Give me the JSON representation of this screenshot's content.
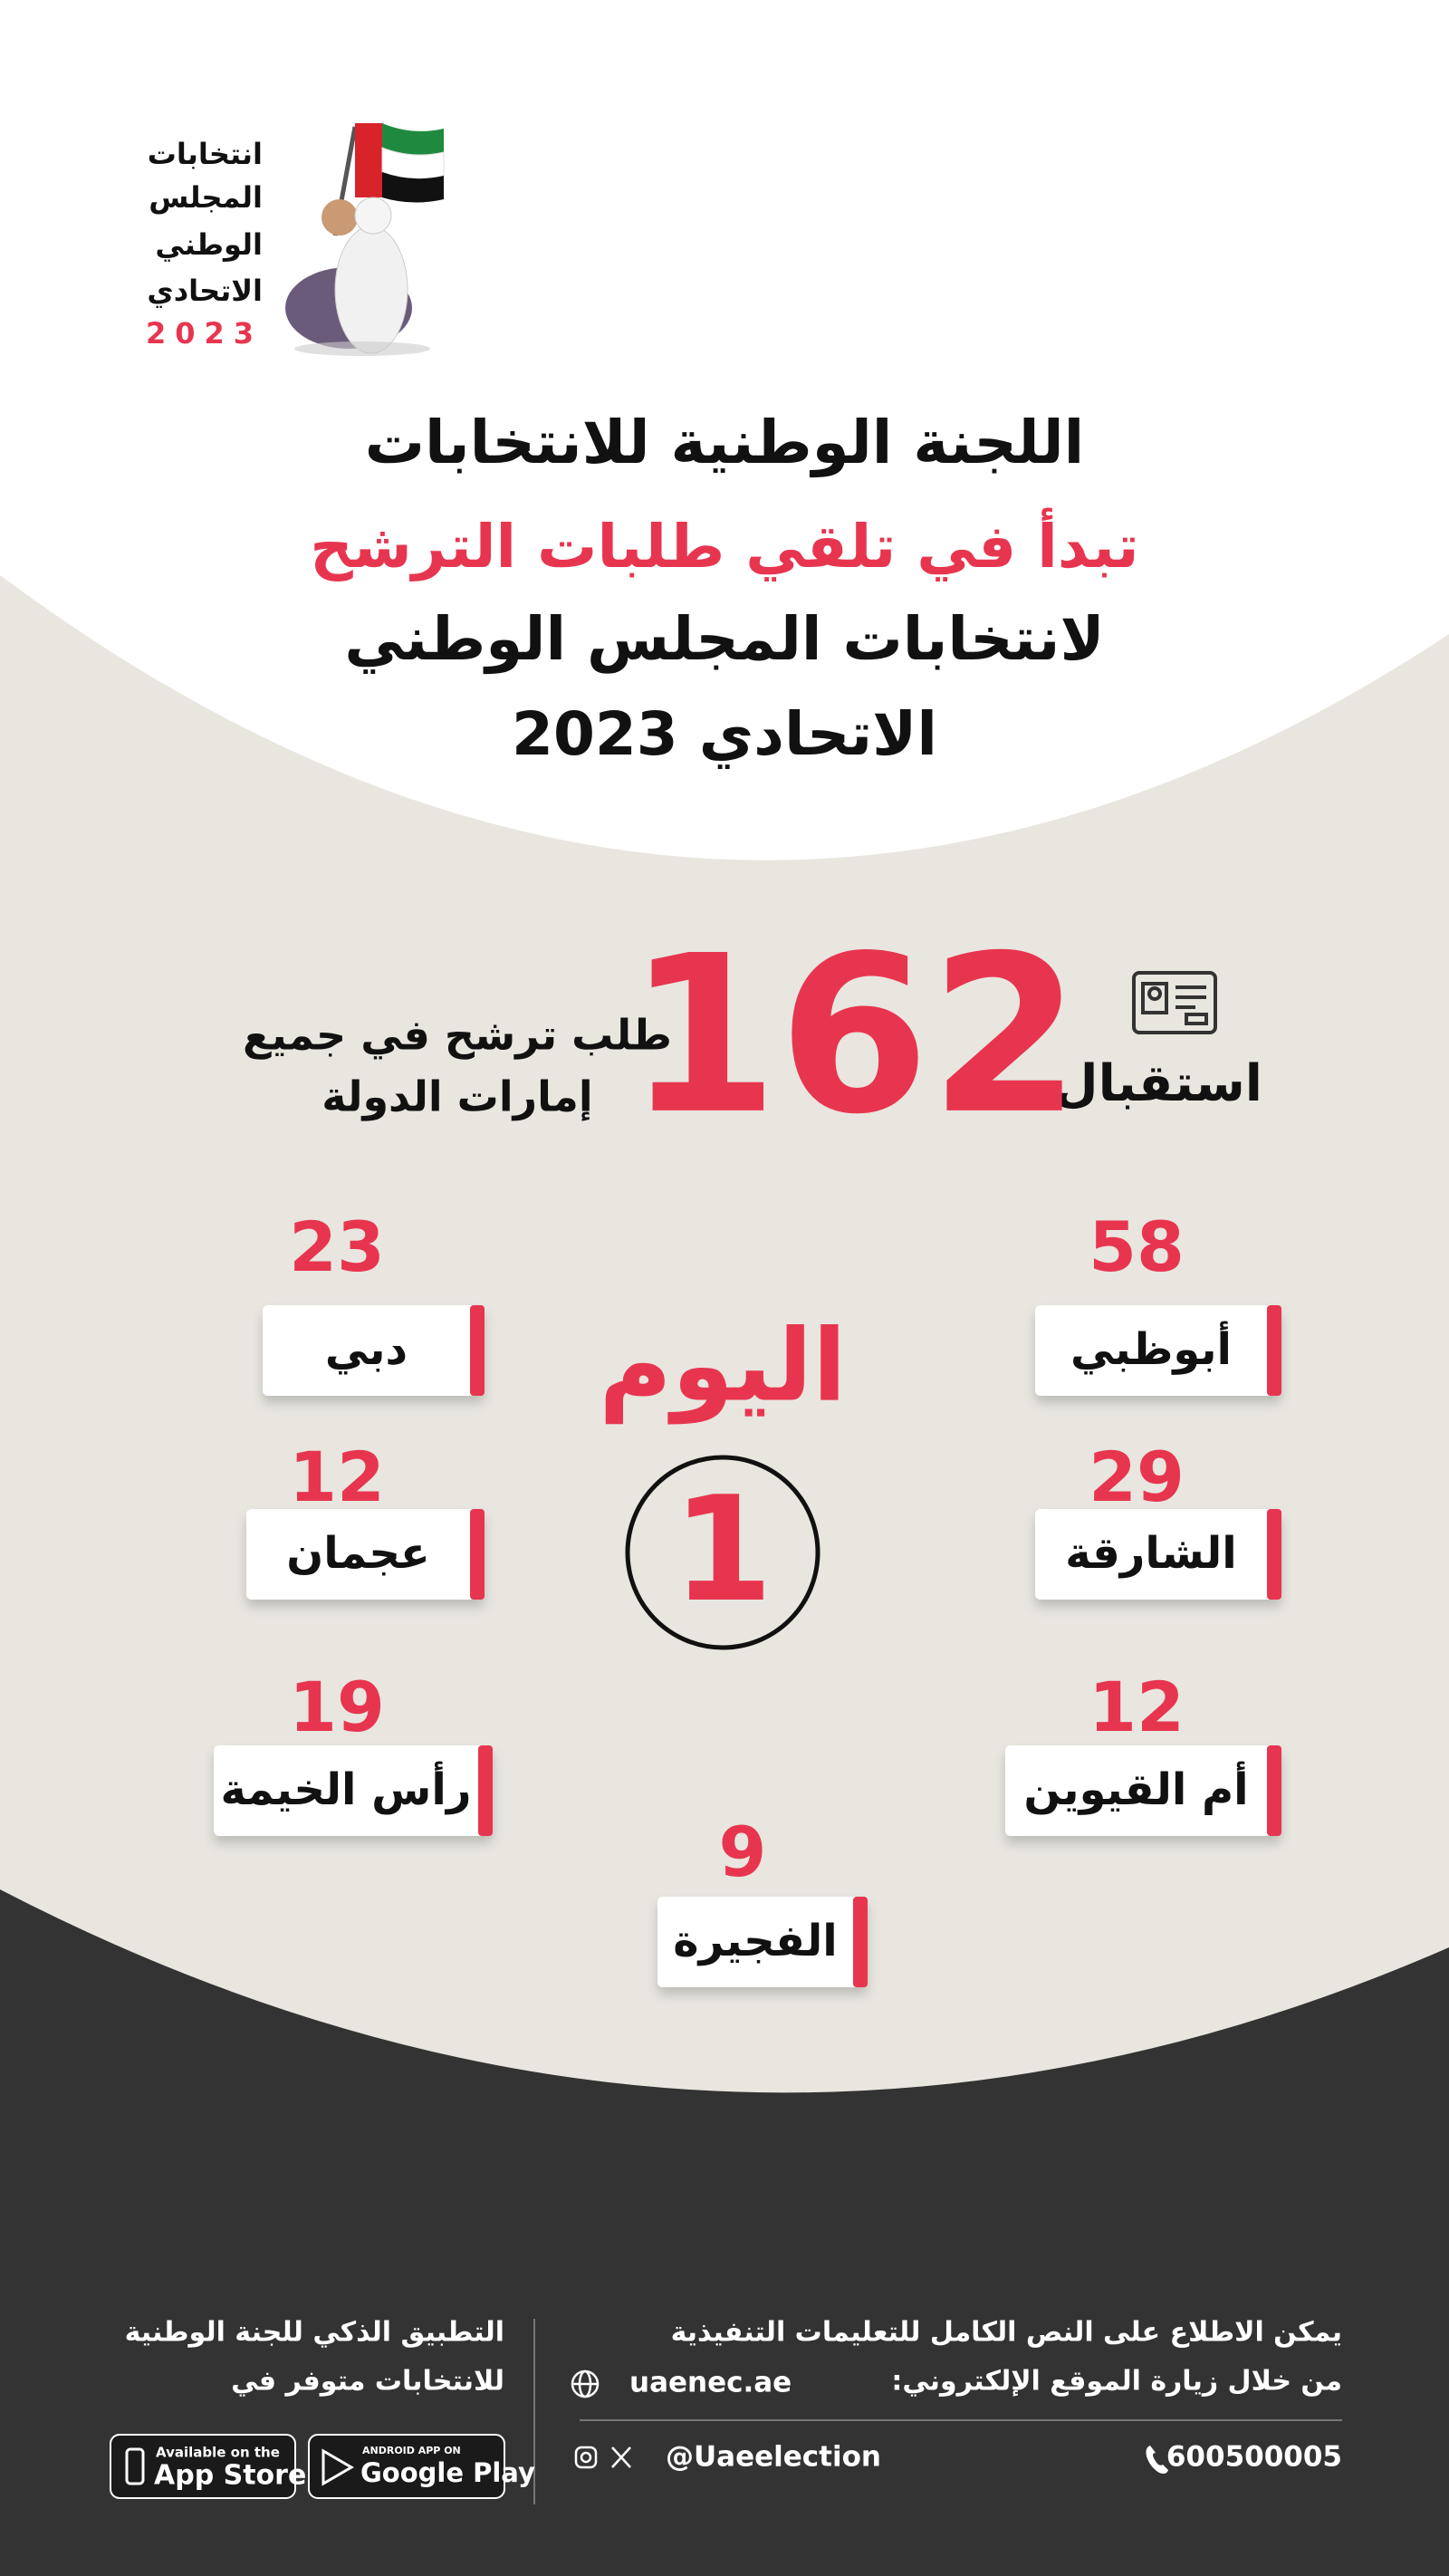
{
  "logo": {
    "lines": [
      "انتخابات",
      "المجلس",
      "الوطني",
      "الاتحادي"
    ],
    "year": "2023"
  },
  "headline": {
    "line1": "اللجنة الوطنية للانتخابات",
    "line2": "تبدأ في تلقي طلبات الترشح",
    "line3": "لانتخابات المجلس الوطني",
    "line4": "الاتحادي 2023"
  },
  "summary": {
    "label": "استقبال",
    "total": 162,
    "caption": [
      "طلب ترشح في جميع",
      "إمارات الدولة"
    ]
  },
  "day": {
    "label": "اليوم",
    "number": 1
  },
  "emirates": [
    {
      "name": "أبوظبي",
      "count": 58
    },
    {
      "name": "دبي",
      "count": 23
    },
    {
      "name": "الشارقة",
      "count": 29
    },
    {
      "name": "عجمان",
      "count": 12
    },
    {
      "name": "أم القيوين",
      "count": 12
    },
    {
      "name": "رأس الخيمة",
      "count": 19
    },
    {
      "name": "الفجيرة",
      "count": 9
    }
  ],
  "footer": {
    "info": [
      "يمكن الاطلاع على النص الكامل للتعليمات التنفيذية",
      "من خلال زيارة الموقع الإلكتروني:"
    ],
    "website": "uaenec.ae",
    "phone": "600500005",
    "social": "@Uaeelection",
    "app": [
      "التطبيق الذكي للجنة الوطنية",
      "للانتخابات متوفر في"
    ],
    "app_store": {
      "small": "Available on the",
      "big": "App Store"
    },
    "google_play": {
      "small": "ANDROID APP ON",
      "big": "Google Play"
    }
  }
}
